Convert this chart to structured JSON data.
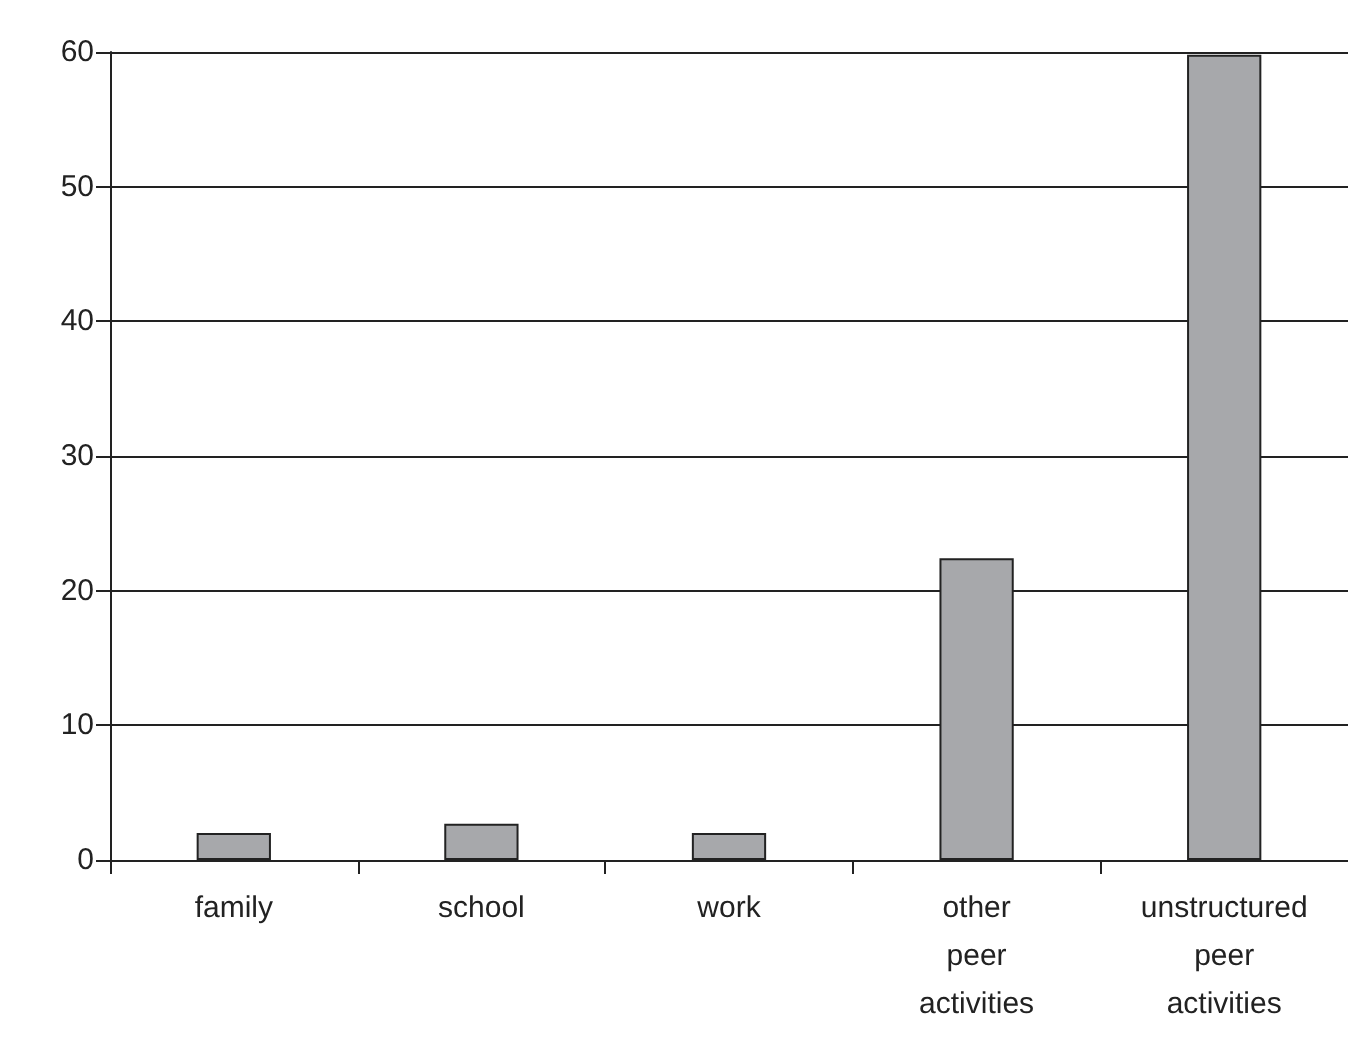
{
  "chart_data": {
    "type": "bar",
    "categories": [
      "family",
      "school",
      "work",
      "other\npeer\nactivities",
      "unstructured\npeer\nactivities"
    ],
    "values": [
      2,
      2.7,
      2,
      22.4,
      59.8
    ],
    "color": "#a7a8ab",
    "ylim": [
      0,
      60
    ],
    "yticks": [
      0,
      10,
      20,
      30,
      40,
      50,
      60
    ],
    "grid": "y"
  }
}
